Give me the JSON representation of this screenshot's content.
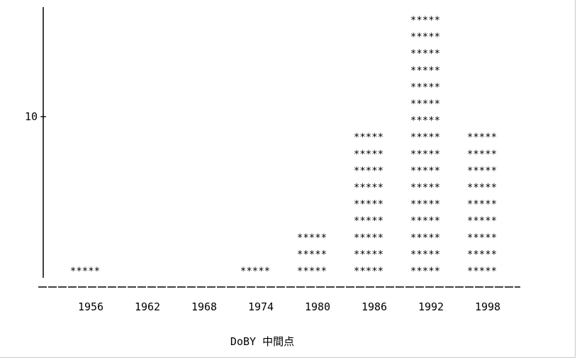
{
  "chart_data": {
    "type": "bar",
    "style": "ascii-histogram",
    "bar_glyph": "*****",
    "categories": [
      "1956",
      "1962",
      "1968",
      "1974",
      "1980",
      "1986",
      "1992",
      "1998"
    ],
    "values": [
      1,
      0,
      0,
      1,
      3,
      9,
      16,
      9
    ],
    "xlabel": "DoBY 中間点",
    "ylabel": "",
    "ylim": [
      0,
      30
    ],
    "yticks": [
      "10",
      "20",
      "30"
    ],
    "ytick_values": [
      10,
      20,
      30
    ],
    "grid": false,
    "color": "#000000"
  }
}
